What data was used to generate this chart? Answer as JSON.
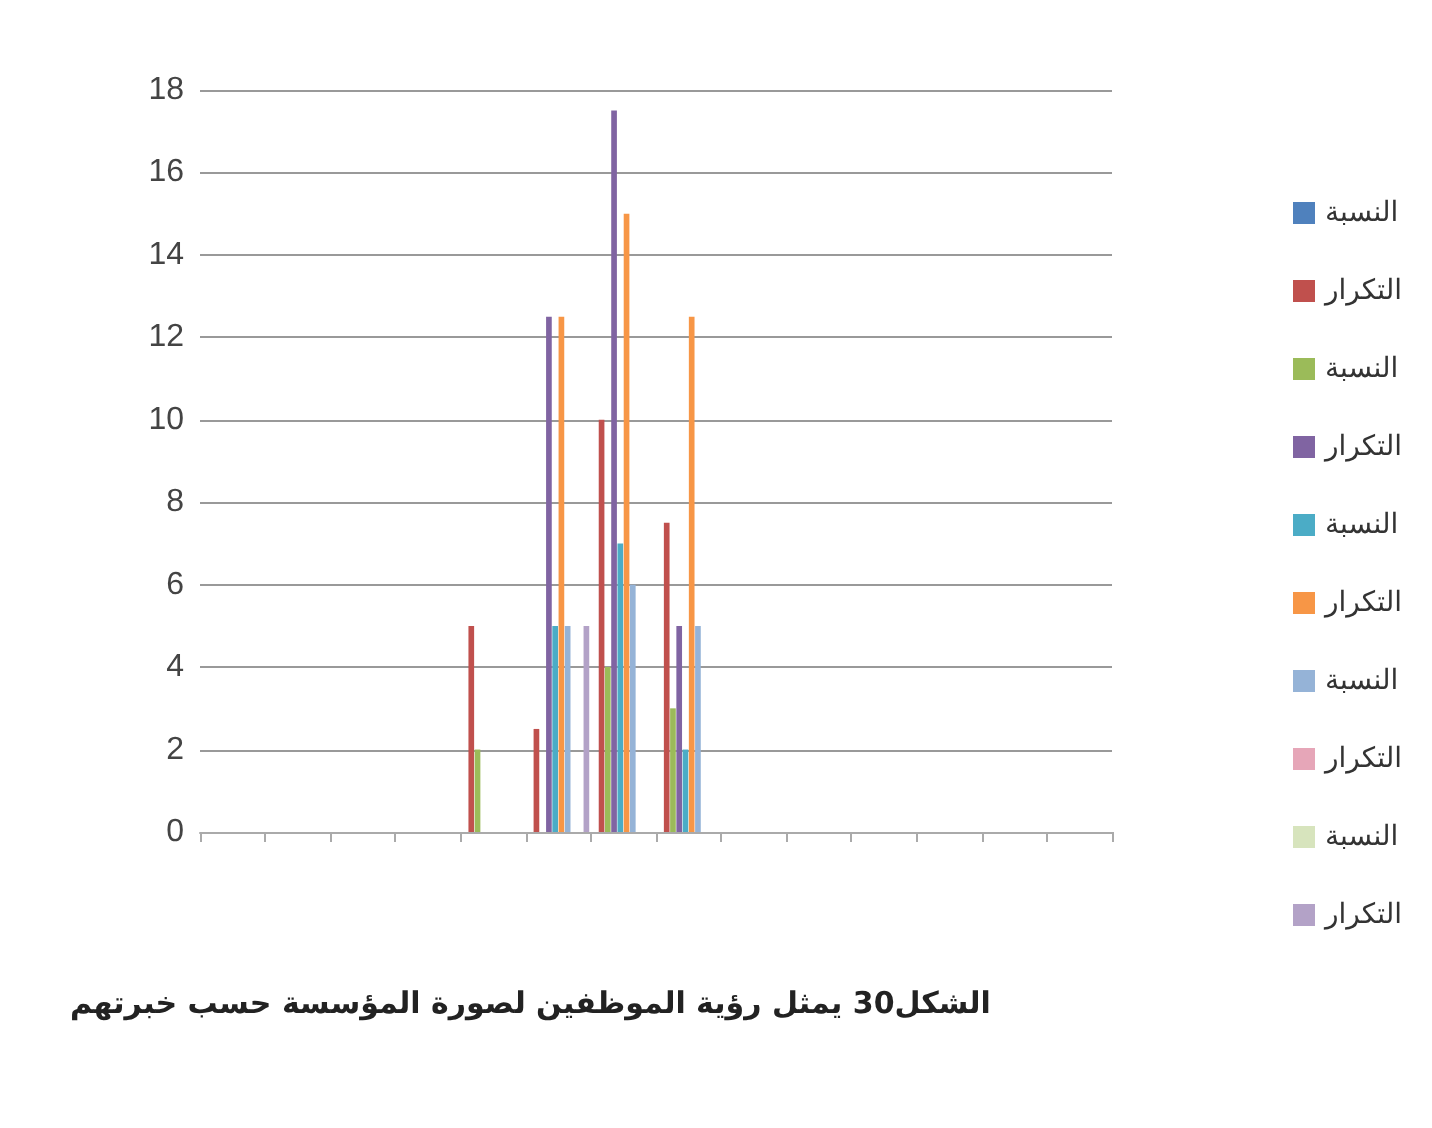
{
  "chart_data": {
    "type": "bar",
    "title": "الشكل30 يمثل رؤية الموظفين لصورة المؤسسة حسب خبرتهم",
    "categories": [
      null,
      null,
      null,
      null,
      null,
      null,
      null,
      null,
      null,
      null,
      null,
      null,
      null,
      null
    ],
    "series": [
      {
        "name": "النسبة",
        "color": "#4f81bd",
        "values": [
          0,
          0,
          0,
          0,
          0,
          0,
          0,
          0,
          0,
          0,
          0,
          0,
          0,
          0
        ]
      },
      {
        "name": "التكرار",
        "color": "#c0504d",
        "values": [
          0,
          0,
          0,
          0,
          5,
          2.5,
          10,
          7.5,
          0,
          0,
          0,
          0,
          0,
          0
        ]
      },
      {
        "name": "النسبة",
        "color": "#9bbb59",
        "values": [
          0,
          0,
          0,
          0,
          2,
          0,
          4,
          3,
          0,
          0,
          0,
          0,
          0,
          0
        ]
      },
      {
        "name": "التكرار",
        "color": "#8064a2",
        "values": [
          0,
          0,
          0,
          0,
          0,
          12.5,
          17.5,
          5,
          0,
          0,
          0,
          0,
          0,
          0
        ]
      },
      {
        "name": "النسبة",
        "color": "#4bacc6",
        "values": [
          0,
          0,
          0,
          0,
          0,
          5,
          7,
          2,
          0,
          0,
          0,
          0,
          0,
          0
        ]
      },
      {
        "name": "التكرار",
        "color": "#f79646",
        "values": [
          0,
          0,
          0,
          0,
          0,
          12.5,
          15,
          12.5,
          0,
          0,
          0,
          0,
          0,
          0
        ]
      },
      {
        "name": "النسبة",
        "color": "#95b3d7",
        "values": [
          0,
          0,
          0,
          0,
          0,
          5,
          6,
          5,
          0,
          0,
          0,
          0,
          0,
          0
        ]
      },
      {
        "name": "التكرار",
        "color": "#e6a6b8",
        "values": [
          0,
          0,
          0,
          0,
          0,
          0,
          0,
          0,
          0,
          0,
          0,
          0,
          0,
          0
        ]
      },
      {
        "name": "النسبة",
        "color": "#d7e4bd",
        "values": [
          0,
          0,
          0,
          0,
          0,
          0,
          0,
          0,
          0,
          0,
          0,
          0,
          0,
          0
        ]
      },
      {
        "name": "التكرار",
        "color": "#b3a2c7",
        "values": [
          0,
          0,
          0,
          0,
          0,
          5,
          0,
          0,
          0,
          0,
          0,
          0,
          0,
          0
        ]
      }
    ],
    "ylim": [
      0,
      18
    ],
    "yticks": [
      0,
      2,
      4,
      6,
      8,
      10,
      12,
      14,
      16,
      18
    ],
    "grid": true,
    "legend": "right"
  }
}
